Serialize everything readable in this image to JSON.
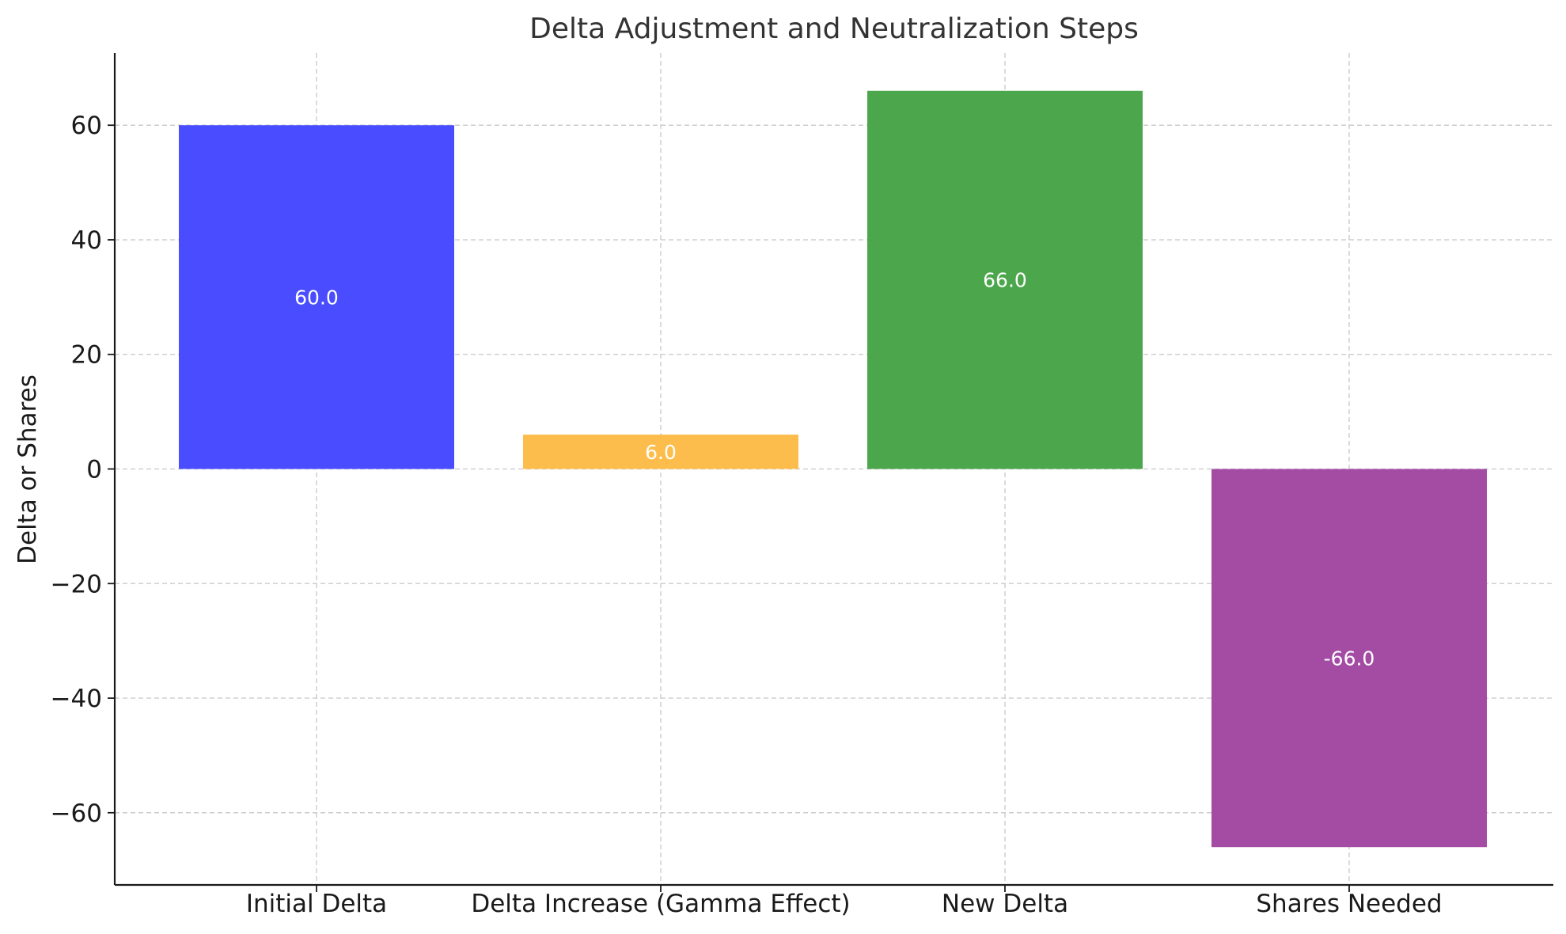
{
  "chart_data": {
    "type": "bar",
    "title": "Delta Adjustment and Neutralization Steps",
    "xlabel": "",
    "ylabel": "Delta or Shares",
    "categories": [
      "Initial Delta",
      "Delta Increase (Gamma Effect)",
      "New Delta",
      "Shares Needed"
    ],
    "values": [
      60.0,
      6.0,
      66.0,
      -66.0
    ],
    "data_labels": [
      "60.0",
      "6.0",
      "66.0",
      "-66.0"
    ],
    "colors": [
      "#4a4dff",
      "#fdbd4c",
      "#4ca64c",
      "#a44ca4"
    ],
    "ylim": [
      -72.6,
      72.6
    ],
    "yticks": [
      -60,
      -40,
      -20,
      0,
      20,
      40,
      60
    ],
    "ytick_labels": [
      "−60",
      "−40",
      "−20",
      "0",
      "20",
      "40",
      "60"
    ],
    "grid": true,
    "legend": "none"
  }
}
